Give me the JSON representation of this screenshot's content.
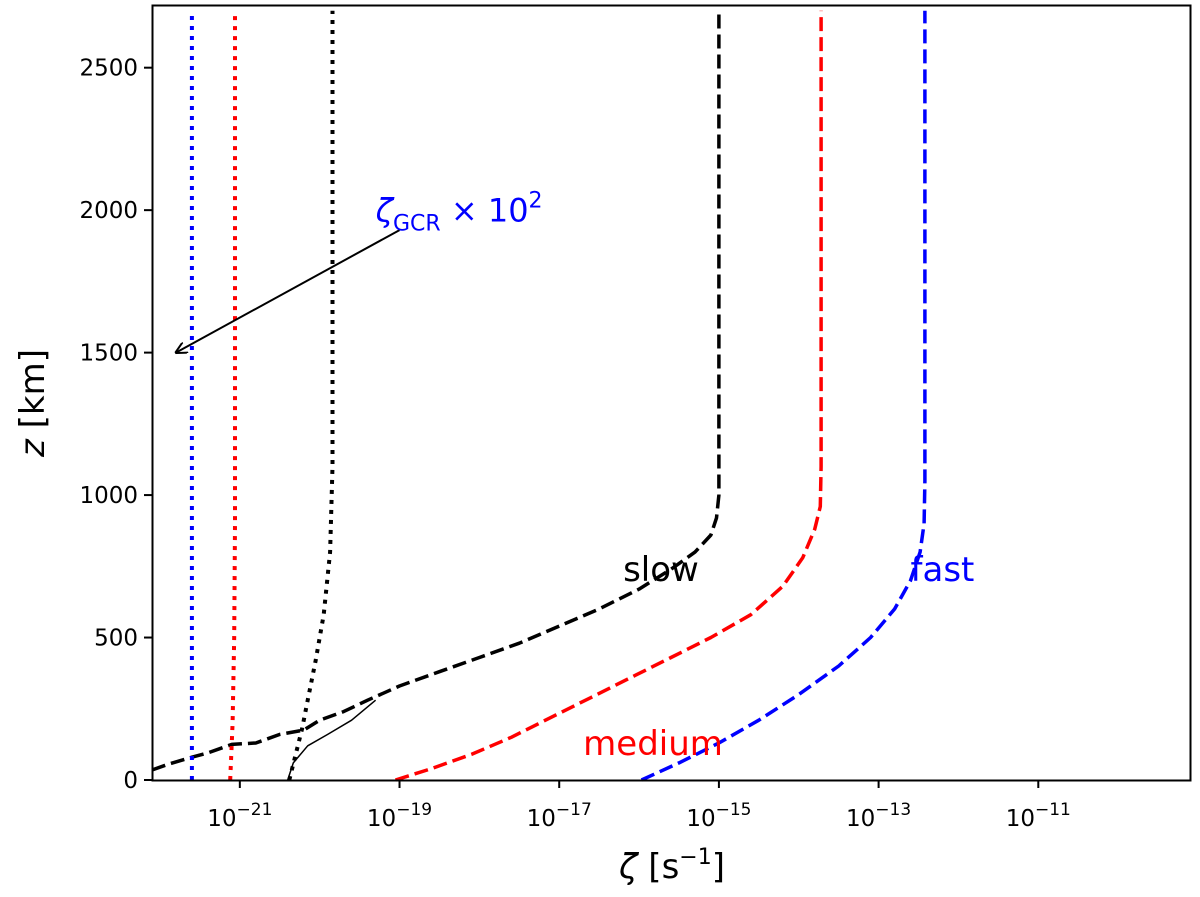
{
  "chart_data": {
    "type": "line",
    "title": "",
    "xlabel": {
      "symbol": "ζ",
      "unit_open": " [s",
      "unit_exp": "−1",
      "unit_close": "]"
    },
    "ylabel": {
      "symbol": "z",
      "unit": " [km]"
    },
    "xscale": "log",
    "xlim_log10": [
      -22.1,
      -9.1
    ],
    "ylim": [
      0,
      2720
    ],
    "grid": false,
    "x_ticks": [
      {
        "base": "10",
        "exp": "−21",
        "log10": -21
      },
      {
        "base": "10",
        "exp": "−19",
        "log10": -19
      },
      {
        "base": "10",
        "exp": "−17",
        "log10": -17
      },
      {
        "base": "10",
        "exp": "−15",
        "log10": -15
      },
      {
        "base": "10",
        "exp": "−13",
        "log10": -13
      },
      {
        "base": "10",
        "exp": "−11",
        "log10": -11
      }
    ],
    "y_ticks": [
      0,
      500,
      1000,
      1500,
      2000,
      2500
    ],
    "colors": {
      "slow": "#000000",
      "medium": "#ff0000",
      "fast": "#0000ff"
    },
    "labels": {
      "slow": {
        "text": "slow",
        "color": "#000000",
        "anchor": [
          -16.2,
          740
        ]
      },
      "medium": {
        "text": "medium",
        "color": "#ff0000",
        "anchor": [
          -16.7,
          130
        ]
      },
      "fast": {
        "text": "fast",
        "color": "#0000ff",
        "anchor": [
          -12.6,
          740
        ]
      }
    },
    "annotation": {
      "main": "ζ",
      "subscript": "GCR",
      "times": " × 10",
      "exponent": "2",
      "color": "#0000ff",
      "text_anchor": [
        -19.3,
        1960
      ],
      "arrow_from": [
        -19.0,
        1930
      ],
      "arrow_to": [
        -21.8,
        1500
      ]
    },
    "series": [
      {
        "name": "slow",
        "style": "dashed",
        "color": "#000000",
        "log10_x": [
          -22.1,
          -21.9,
          -21.6,
          -21.4,
          -21.1,
          -20.8,
          -20.5,
          -20.2,
          -20.0,
          -19.7,
          -19.4,
          -19.0,
          -18.5,
          -18.0,
          -17.5,
          -17.0,
          -16.5,
          -16.0,
          -15.6,
          -15.3,
          -15.1,
          -15.03,
          -15.0,
          -15.0,
          -15.0
        ],
        "z": [
          35,
          55,
          80,
          95,
          125,
          130,
          160,
          175,
          210,
          240,
          280,
          330,
          380,
          430,
          480,
          540,
          600,
          670,
          740,
          800,
          860,
          920,
          1000,
          1500,
          2700
        ]
      },
      {
        "name": "slow-thin",
        "style": "solid",
        "width": 1.5,
        "color": "#000000",
        "log10_x": [
          -20.4,
          -20.33,
          -20.15,
          -19.9,
          -19.6,
          -19.3
        ],
        "z": [
          0,
          60,
          120,
          160,
          210,
          280
        ]
      },
      {
        "name": "medium",
        "style": "dashed",
        "color": "#ff0000",
        "log10_x": [
          -19.05,
          -18.6,
          -18.1,
          -17.6,
          -17.1,
          -16.6,
          -16.1,
          -15.6,
          -15.1,
          -14.6,
          -14.2,
          -13.95,
          -13.8,
          -13.73,
          -13.72,
          -13.72
        ],
        "z": [
          0,
          40,
          90,
          150,
          220,
          290,
          360,
          430,
          500,
          580,
          680,
          780,
          880,
          960,
          1100,
          2700
        ]
      },
      {
        "name": "fast",
        "style": "dashed",
        "color": "#0000ff",
        "log10_x": [
          -15.97,
          -15.5,
          -15.0,
          -14.5,
          -14.0,
          -13.5,
          -13.1,
          -12.8,
          -12.6,
          -12.48,
          -12.43,
          -12.42,
          -12.42
        ],
        "z": [
          0,
          60,
          130,
          210,
          300,
          400,
          500,
          600,
          700,
          800,
          900,
          1050,
          2700
        ]
      },
      {
        "name": "slow-dotted",
        "style": "dotted",
        "color": "#000000",
        "log10_x": [
          -20.38,
          -20.3,
          -20.22,
          -20.15,
          -20.05,
          -19.95,
          -19.87,
          -19.84,
          -19.84
        ],
        "z": [
          0,
          90,
          180,
          280,
          420,
          580,
          800,
          1100,
          2700
        ]
      },
      {
        "name": "medium-dotted",
        "style": "dotted",
        "color": "#ff0000",
        "log10_x": [
          -21.12,
          -21.09,
          -21.07,
          -21.06,
          -21.06
        ],
        "z": [
          0,
          200,
          500,
          900,
          2700
        ]
      },
      {
        "name": "fast-dotted",
        "style": "dotted",
        "color": "#0000ff",
        "log10_x": [
          -21.6,
          -21.6
        ],
        "z": [
          0,
          2700
        ]
      }
    ]
  }
}
